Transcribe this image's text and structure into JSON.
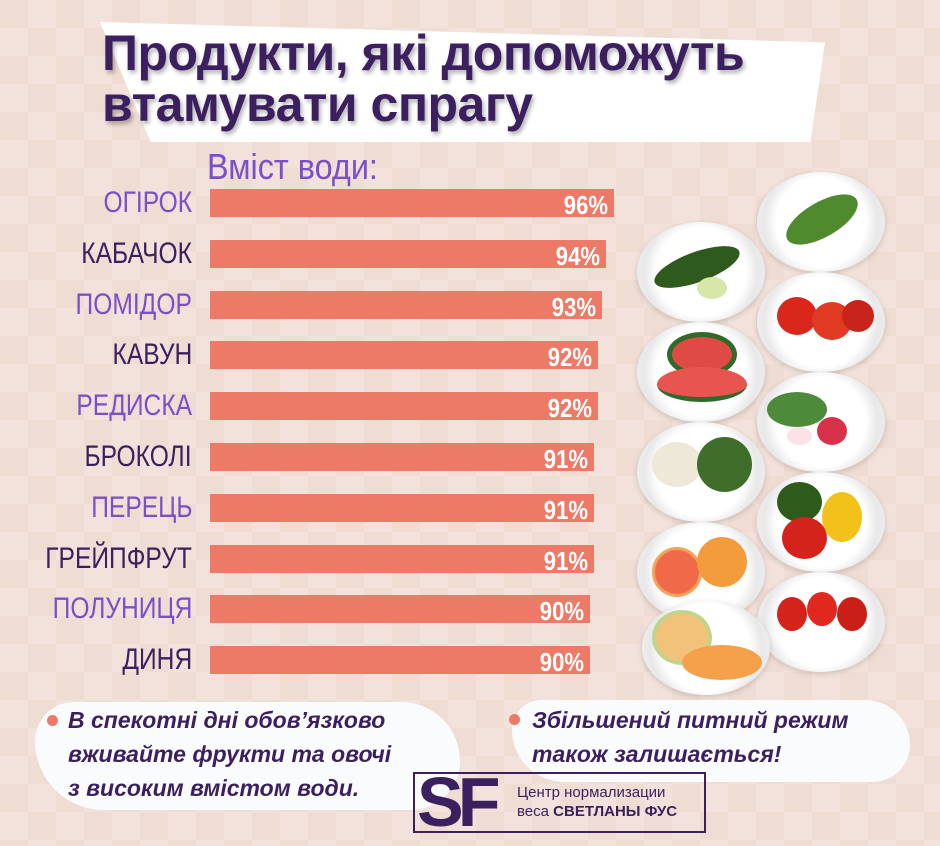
{
  "title_line1": "Продукти, які допоможуть",
  "title_line2": "втамувати спрагу",
  "chart_data": {
    "type": "bar",
    "orientation": "horizontal",
    "title": "Вміст води:",
    "categories": [
      "ОГІРОК",
      "КАБАЧОК",
      "ПОМІДОР",
      "КАВУН",
      "РЕДИСКА",
      "БРОКОЛІ",
      "ПЕРЕЦЬ",
      "ГРЕЙПФРУТ",
      "ПОЛУНИЦЯ",
      "ДИНЯ"
    ],
    "values": [
      96,
      94,
      93,
      92,
      92,
      91,
      91,
      91,
      90,
      90
    ],
    "data_labels": [
      "96%",
      "94%",
      "93%",
      "92%",
      "92%",
      "91%",
      "91%",
      "91%",
      "90%",
      "90%"
    ],
    "unit": "%",
    "label_colors": [
      "#7b4fc9",
      "#3b1f5e"
    ],
    "bar_color": "#ec7a66"
  },
  "notes": [
    {
      "lines": [
        "В спекотні дні обов’язково",
        "вживайте фрукти та овочі",
        "з високим вмістом води."
      ]
    },
    {
      "lines": [
        "Збільшений питний режим",
        "також залишається!"
      ]
    }
  ],
  "logo": {
    "mark": "SF",
    "line1": "Центр нормализации",
    "line2_a": "веса ",
    "line2_b": "СВЕТЛАНЫ ФУС"
  },
  "colors": {
    "title": "#3b1f5e",
    "accent": "#7b4fc9",
    "bar": "#ec7a66",
    "background": "#efdcd3"
  }
}
